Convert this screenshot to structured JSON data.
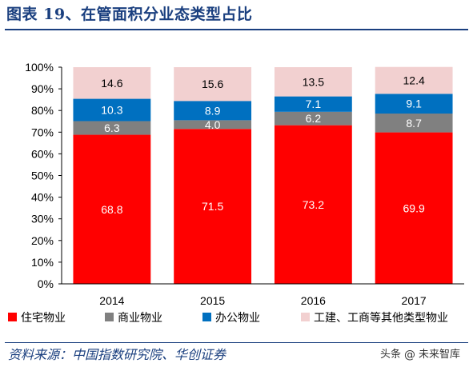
{
  "figure_title": "图表 19、在管面积分业态类型占比",
  "source": "资料来源：中国指数研究院、华创证券",
  "watermark": {
    "prefix": "头条",
    "handle": "未来智库"
  },
  "chart_data": {
    "type": "bar",
    "stacked": true,
    "categories": [
      "2014",
      "2015",
      "2016",
      "2017"
    ],
    "series": [
      {
        "name": "住宅物业",
        "values": [
          68.8,
          71.5,
          73.2,
          69.9
        ],
        "color": "#ff0000"
      },
      {
        "name": "商业物业",
        "values": [
          6.3,
          4.0,
          6.2,
          8.7
        ],
        "color": "#808080"
      },
      {
        "name": "办公物业",
        "values": [
          10.3,
          8.9,
          7.1,
          9.1
        ],
        "color": "#0070c0"
      },
      {
        "name": "工建、工商等其他类型物业",
        "values": [
          14.6,
          15.6,
          13.5,
          12.4
        ],
        "color": "#f2d0d0"
      }
    ],
    "labels": [
      [
        "68.8",
        "71.5",
        "73.2",
        "69.9"
      ],
      [
        "6.3",
        "4.0",
        "6.2",
        "8.7"
      ],
      [
        "10.3",
        "8.9",
        "7.1",
        "9.1"
      ],
      [
        "14.6",
        "15.6",
        "13.5",
        "12.4"
      ]
    ],
    "label_colors": [
      "#ffffff",
      "#ffffff",
      "#ffffff",
      "#000000"
    ],
    "ylim": [
      0,
      100
    ],
    "yticks": [
      0,
      10,
      20,
      30,
      40,
      50,
      60,
      70,
      80,
      90,
      100
    ],
    "ytick_labels": [
      "0%",
      "10%",
      "20%",
      "30%",
      "40%",
      "50%",
      "60%",
      "70%",
      "80%",
      "90%",
      "100%"
    ],
    "grid": false,
    "legend_position": "bottom"
  }
}
